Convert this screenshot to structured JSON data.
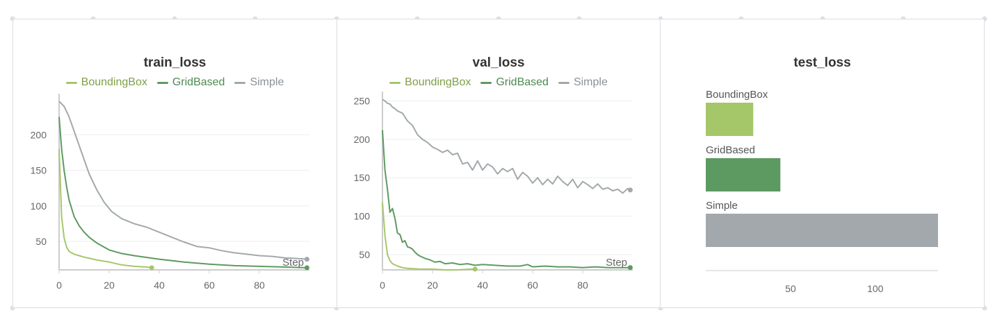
{
  "colors": {
    "BoundingBox": "#a5c76a",
    "GridBased": "#5c9a61",
    "Simple": "#a2a8ab",
    "grid": "#eeeeee",
    "axis": "#cccccc",
    "tick_text": "#666666"
  },
  "chart_data": [
    {
      "type": "line",
      "title": "train_loss",
      "xlabel": "Step",
      "legend_position": "top",
      "grid": true,
      "xlim": [
        0,
        100
      ],
      "ylim": [
        10,
        250
      ],
      "xticks": [
        0,
        20,
        40,
        60,
        80
      ],
      "yticks": [
        50,
        100,
        150,
        200
      ],
      "series": [
        {
          "name": "BoundingBox",
          "x": [
            0,
            1,
            2,
            3,
            4,
            6,
            8,
            10,
            15,
            20,
            25,
            30,
            35,
            37
          ],
          "y": [
            180,
            85,
            55,
            42,
            36,
            32,
            30,
            28,
            24,
            21,
            17,
            15,
            14,
            13
          ]
        },
        {
          "name": "GridBased",
          "x": [
            0,
            1,
            2,
            3,
            4,
            6,
            8,
            10,
            12,
            15,
            20,
            25,
            30,
            40,
            50,
            60,
            70,
            80,
            90,
            99
          ],
          "y": [
            225,
            180,
            150,
            127,
            108,
            85,
            72,
            63,
            56,
            48,
            38,
            33,
            30,
            25,
            21,
            18,
            16,
            15,
            14,
            13
          ]
        },
        {
          "name": "Simple",
          "x": [
            0,
            2,
            4,
            6,
            8,
            10,
            12,
            15,
            18,
            21,
            25,
            30,
            35,
            40,
            45,
            50,
            55,
            60,
            65,
            70,
            75,
            80,
            85,
            90,
            95,
            99
          ],
          "y": [
            247,
            240,
            225,
            205,
            185,
            165,
            145,
            123,
            105,
            92,
            82,
            75,
            70,
            63,
            56,
            49,
            43,
            41,
            37,
            34,
            32,
            30,
            29,
            27,
            26,
            25
          ]
        }
      ]
    },
    {
      "type": "line",
      "title": "val_loss",
      "xlabel": "Step",
      "legend_position": "top",
      "grid": true,
      "xlim": [
        0,
        100
      ],
      "ylim": [
        30,
        255
      ],
      "xticks": [
        0,
        20,
        40,
        60,
        80
      ],
      "yticks": [
        50,
        100,
        150,
        200,
        250
      ],
      "series": [
        {
          "name": "BoundingBox",
          "x": [
            0,
            1,
            2,
            3,
            4,
            6,
            8,
            10,
            15,
            20,
            25,
            30,
            35,
            37
          ],
          "y": [
            118,
            75,
            50,
            42,
            38,
            35,
            33,
            32,
            31,
            31,
            30,
            30,
            31,
            31
          ]
        },
        {
          "name": "GridBased",
          "x": [
            0,
            1,
            2,
            3,
            4,
            5,
            6,
            7,
            8,
            9,
            10,
            11,
            12,
            13,
            14,
            15,
            17,
            19,
            21,
            23,
            25,
            28,
            31,
            34,
            37,
            40,
            45,
            50,
            55,
            58,
            60,
            65,
            70,
            75,
            80,
            85,
            90,
            95,
            99
          ],
          "y": [
            212,
            160,
            135,
            105,
            110,
            97,
            78,
            76,
            66,
            68,
            60,
            59,
            57,
            53,
            50,
            48,
            45,
            43,
            40,
            41,
            38,
            39,
            37,
            38,
            36,
            37,
            36,
            35,
            35,
            37,
            34,
            35,
            34,
            34,
            33,
            34,
            33,
            33,
            33
          ]
        },
        {
          "name": "Simple",
          "x": [
            0,
            1,
            2,
            3,
            4,
            5,
            6,
            8,
            10,
            12,
            14,
            16,
            18,
            20,
            22,
            24,
            26,
            28,
            30,
            32,
            34,
            36,
            38,
            40,
            42,
            44,
            46,
            48,
            50,
            52,
            54,
            56,
            58,
            60,
            62,
            64,
            66,
            68,
            70,
            72,
            74,
            76,
            78,
            80,
            82,
            84,
            86,
            88,
            90,
            92,
            94,
            96,
            98,
            99
          ],
          "y": [
            252,
            250,
            247,
            246,
            242,
            240,
            237,
            234,
            224,
            218,
            206,
            200,
            196,
            190,
            187,
            183,
            186,
            180,
            182,
            168,
            170,
            160,
            172,
            160,
            168,
            164,
            155,
            162,
            158,
            162,
            148,
            157,
            152,
            143,
            150,
            141,
            148,
            142,
            152,
            145,
            140,
            148,
            137,
            145,
            141,
            136,
            142,
            135,
            137,
            133,
            135,
            130,
            136,
            134
          ]
        }
      ]
    },
    {
      "type": "bar",
      "orientation": "horizontal",
      "title": "test_loss",
      "categories": [
        "BoundingBox",
        "GridBased",
        "Simple"
      ],
      "values": [
        28,
        44,
        137
      ],
      "xlim": [
        0,
        137
      ],
      "xticks": [
        50,
        100
      ],
      "grid": false
    }
  ]
}
